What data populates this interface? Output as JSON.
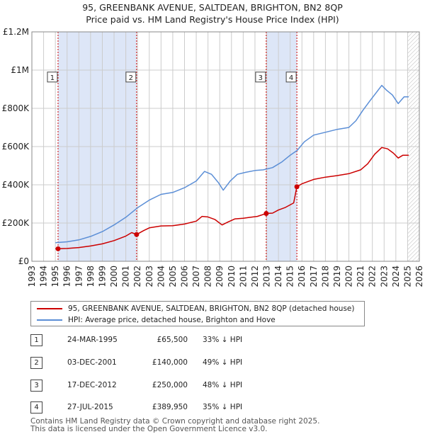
{
  "chart_data": {
    "type": "line",
    "title_line1": "95, GREENBANK AVENUE, SALTDEAN, BRIGHTON, BN2 8QP",
    "title_line2": "Price paid vs. HM Land Registry's House Price Index (HPI)",
    "xlim": [
      1993,
      2026
    ],
    "ylim": [
      0,
      1200000
    ],
    "x_ticks": [
      1993,
      1994,
      1995,
      1996,
      1997,
      1998,
      1999,
      2000,
      2001,
      2002,
      2003,
      2004,
      2005,
      2006,
      2007,
      2008,
      2009,
      2010,
      2011,
      2012,
      2013,
      2014,
      2015,
      2016,
      2017,
      2018,
      2019,
      2020,
      2021,
      2022,
      2023,
      2024,
      2025,
      2026
    ],
    "y_ticks": [
      {
        "value": 0,
        "label": "£0"
      },
      {
        "value": 200000,
        "label": "£200K"
      },
      {
        "value": 400000,
        "label": "£400K"
      },
      {
        "value": 600000,
        "label": "£600K"
      },
      {
        "value": 800000,
        "label": "£800K"
      },
      {
        "value": 1000000,
        "label": "£1M"
      },
      {
        "value": 1200000,
        "label": "£1.2M"
      }
    ],
    "shaded_ranges": [
      [
        1995.23,
        2001.92
      ],
      [
        2012.96,
        2015.57
      ]
    ],
    "future_hatch_from": 2025.0,
    "series": [
      {
        "name": "95, GREENBANK AVENUE, SALTDEAN, BRIGHTON, BN2 8QP (detached house)",
        "color": "#cc0000",
        "points": [
          [
            1995.0,
            65500
          ],
          [
            1995.23,
            65500
          ],
          [
            1996.0,
            67000
          ],
          [
            1997.0,
            72000
          ],
          [
            1998.0,
            80000
          ],
          [
            1999.0,
            91000
          ],
          [
            2000.0,
            108000
          ],
          [
            2001.0,
            132000
          ],
          [
            2001.5,
            150000
          ],
          [
            2001.92,
            140000
          ],
          [
            2002.5,
            160000
          ],
          [
            2003.0,
            175000
          ],
          [
            2004.0,
            185000
          ],
          [
            2005.0,
            186000
          ],
          [
            2006.0,
            195000
          ],
          [
            2007.0,
            210000
          ],
          [
            2007.5,
            235000
          ],
          [
            2008.0,
            232000
          ],
          [
            2008.6,
            218000
          ],
          [
            2009.2,
            190000
          ],
          [
            2009.7,
            205000
          ],
          [
            2010.3,
            222000
          ],
          [
            2011.0,
            225000
          ],
          [
            2011.6,
            230000
          ],
          [
            2012.2,
            235000
          ],
          [
            2012.96,
            250000
          ],
          [
            2013.5,
            252000
          ],
          [
            2014.0,
            268000
          ],
          [
            2014.6,
            282000
          ],
          [
            2015.3,
            305000
          ],
          [
            2015.57,
            389950
          ],
          [
            2016.0,
            405000
          ],
          [
            2017.0,
            428000
          ],
          [
            2018.0,
            440000
          ],
          [
            2019.0,
            448000
          ],
          [
            2020.0,
            458000
          ],
          [
            2021.0,
            478000
          ],
          [
            2021.6,
            510000
          ],
          [
            2022.2,
            560000
          ],
          [
            2022.8,
            595000
          ],
          [
            2023.3,
            588000
          ],
          [
            2023.8,
            565000
          ],
          [
            2024.2,
            540000
          ],
          [
            2024.6,
            555000
          ],
          [
            2025.1,
            555000
          ]
        ]
      },
      {
        "name": "HPI: Average price, detached house, Brighton and Hove",
        "color": "#5b8ed6",
        "points": [
          [
            1995.0,
            97000
          ],
          [
            1996.0,
            102000
          ],
          [
            1997.0,
            112000
          ],
          [
            1998.0,
            130000
          ],
          [
            1999.0,
            155000
          ],
          [
            2000.0,
            190000
          ],
          [
            2001.0,
            230000
          ],
          [
            2002.0,
            280000
          ],
          [
            2003.0,
            320000
          ],
          [
            2004.0,
            350000
          ],
          [
            2005.0,
            360000
          ],
          [
            2006.0,
            385000
          ],
          [
            2007.0,
            420000
          ],
          [
            2007.7,
            470000
          ],
          [
            2008.3,
            455000
          ],
          [
            2008.9,
            410000
          ],
          [
            2009.3,
            372000
          ],
          [
            2009.9,
            420000
          ],
          [
            2010.5,
            455000
          ],
          [
            2011.2,
            465000
          ],
          [
            2012.0,
            475000
          ],
          [
            2012.7,
            478000
          ],
          [
            2013.5,
            490000
          ],
          [
            2014.3,
            520000
          ],
          [
            2015.0,
            555000
          ],
          [
            2015.6,
            580000
          ],
          [
            2016.2,
            625000
          ],
          [
            2017.0,
            660000
          ],
          [
            2018.0,
            675000
          ],
          [
            2019.0,
            690000
          ],
          [
            2020.0,
            700000
          ],
          [
            2020.6,
            735000
          ],
          [
            2021.2,
            790000
          ],
          [
            2021.8,
            840000
          ],
          [
            2022.3,
            880000
          ],
          [
            2022.8,
            920000
          ],
          [
            2023.2,
            895000
          ],
          [
            2023.7,
            870000
          ],
          [
            2024.2,
            825000
          ],
          [
            2024.7,
            860000
          ],
          [
            2025.1,
            860000
          ]
        ]
      }
    ],
    "sales": [
      {
        "id": "1",
        "year": 1995.23,
        "price": 65500
      },
      {
        "id": "2",
        "year": 2001.92,
        "price": 140000
      },
      {
        "id": "3",
        "year": 2012.96,
        "price": 250000
      },
      {
        "id": "4",
        "year": 2015.57,
        "price": 389950
      }
    ],
    "marker_label_value": 960000
  },
  "legend": {
    "property": "95, GREENBANK AVENUE, SALTDEAN, BRIGHTON, BN2 8QP (detached house)",
    "hpi": "HPI: Average price, detached house, Brighton and Hove"
  },
  "transactions": [
    {
      "id": "1",
      "date": "24-MAR-1995",
      "price": "£65,500",
      "hpi": "33% ↓ HPI"
    },
    {
      "id": "2",
      "date": "03-DEC-2001",
      "price": "£140,000",
      "hpi": "49% ↓ HPI"
    },
    {
      "id": "3",
      "date": "17-DEC-2012",
      "price": "£250,000",
      "hpi": "48% ↓ HPI"
    },
    {
      "id": "4",
      "date": "27-JUL-2015",
      "price": "£389,950",
      "hpi": "35% ↓ HPI"
    }
  ],
  "footer": {
    "line1": "Contains HM Land Registry data © Crown copyright and database right 2025.",
    "line2": "This data is licensed under the Open Government Licence v3.0."
  },
  "colors": {
    "property": "#cc0000",
    "hpi": "#5b8ed6",
    "shade": "#dde6f7",
    "grid": "#cccccc"
  }
}
